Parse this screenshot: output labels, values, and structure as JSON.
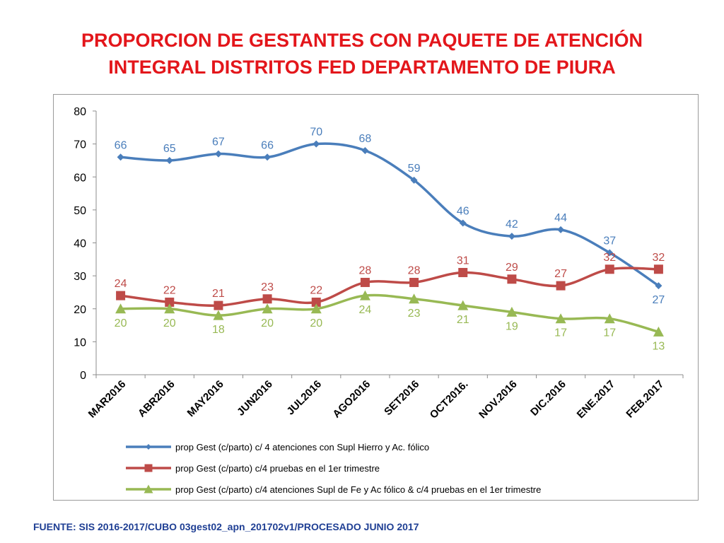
{
  "title_line1": "PROPORCION DE GESTANTES CON PAQUETE DE ATENCIÓN",
  "title_line2": "INTEGRAL  DISTRITOS FED DEPARTAMENTO DE PIURA",
  "source": "FUENTE: SIS 2016-2017/CUBO 03gest02_apn_201702v1/PROCESADO JUNIO 2017",
  "colors": {
    "title": "#e3161b",
    "source": "#1f3f94"
  },
  "chart_data": {
    "type": "line",
    "title": "PROPORCION DE GESTANTES CON PAQUETE DE ATENCIÓN INTEGRAL  DISTRITOS FED DEPARTAMENTO DE PIURA",
    "xlabel": "",
    "ylabel": "",
    "ylim": [
      0,
      80
    ],
    "yticks": [
      0,
      10,
      20,
      30,
      40,
      50,
      60,
      70,
      80
    ],
    "grid": false,
    "legend_position": "bottom",
    "categories": [
      "MAR2016",
      "ABR2016",
      "MAY2016",
      "JUN2016",
      "JUL2016",
      "AGO2016",
      "SET2016",
      "OCT2016.",
      "NOV.2016",
      "DIC.2016",
      "ENE.2017",
      "FEB.2017"
    ],
    "series": [
      {
        "name": "prop Gest (c/parto) c/ 4 atenciones con Supl Hierro y Ac. fólico",
        "color": "#4a7ebb",
        "marker": "diamond",
        "values": [
          66,
          65,
          67,
          66,
          70,
          68,
          59,
          46,
          42,
          44,
          37,
          27
        ],
        "label_position": [
          "above",
          "above",
          "above",
          "above",
          "above",
          "above",
          "above",
          "above",
          "above",
          "above",
          "above",
          "below"
        ]
      },
      {
        "name": "prop Gest (c/parto) c/4 pruebas en el 1er trimestre",
        "color": "#be4b48",
        "marker": "square",
        "values": [
          24,
          22,
          21,
          23,
          22,
          28,
          28,
          31,
          29,
          27,
          32,
          32
        ],
        "label_position": [
          "above",
          "above",
          "above",
          "above",
          "above",
          "above",
          "above",
          "above",
          "above",
          "above",
          "above",
          "above"
        ]
      },
      {
        "name": "prop Gest (c/parto) c/4 atenciones Supl de Fe y Ac fólico & c/4 pruebas en el 1er trimestre",
        "color": "#98b954",
        "marker": "triangle",
        "values": [
          20,
          20,
          18,
          20,
          20,
          24,
          23,
          21,
          19,
          17,
          17,
          13
        ],
        "label_position": [
          "below",
          "below",
          "below",
          "below",
          "below",
          "below",
          "below",
          "below",
          "below",
          "below",
          "below",
          "below"
        ]
      }
    ]
  }
}
